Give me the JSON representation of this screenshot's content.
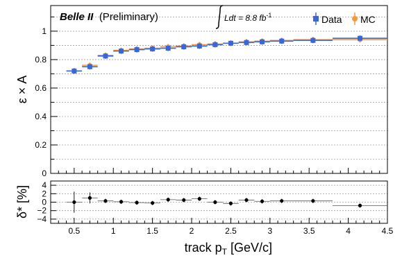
{
  "header": {
    "experiment": "Belle II",
    "status": "(Preliminary)",
    "lumi_symbol": "Ldt = 8.8 fb",
    "lumi_sup": "-1"
  },
  "legend": {
    "data_label": "Data",
    "mc_label": "MC"
  },
  "colors": {
    "data": "#3a67d8",
    "mc": "#f39a3c",
    "ratio": "#000000"
  },
  "chart_data": [
    {
      "type": "scatter",
      "panel": "top",
      "ylabel": "ε × A",
      "xlim": [
        0.2,
        4.5
      ],
      "ylim": [
        0,
        1.18
      ],
      "yticks": [
        0,
        0.2,
        0.4,
        0.6,
        0.8,
        1
      ],
      "ytick_labels": [
        "0",
        "0.2",
        "0.4",
        "0.6",
        "0.8",
        "1"
      ],
      "grid": "horizontal dotted",
      "legend_placement": "top-right",
      "bins": [
        [
          0.4,
          0.6
        ],
        [
          0.6,
          0.8
        ],
        [
          0.8,
          1.0
        ],
        [
          1.0,
          1.2
        ],
        [
          1.2,
          1.4
        ],
        [
          1.4,
          1.6
        ],
        [
          1.6,
          1.8
        ],
        [
          1.8,
          2.0
        ],
        [
          2.0,
          2.2
        ],
        [
          2.2,
          2.4
        ],
        [
          2.4,
          2.6
        ],
        [
          2.6,
          2.8
        ],
        [
          2.8,
          3.0
        ],
        [
          3.0,
          3.3
        ],
        [
          3.3,
          3.8
        ],
        [
          3.8,
          4.5
        ]
      ],
      "series": [
        {
          "name": "Data",
          "x": [
            0.5,
            0.7,
            0.9,
            1.1,
            1.3,
            1.5,
            1.7,
            1.9,
            2.1,
            2.3,
            2.5,
            2.7,
            2.9,
            3.15,
            3.55,
            4.15
          ],
          "y": [
            0.72,
            0.75,
            0.825,
            0.86,
            0.87,
            0.875,
            0.88,
            0.89,
            0.895,
            0.905,
            0.915,
            0.92,
            0.925,
            0.93,
            0.935,
            0.95
          ]
        },
        {
          "name": "MC",
          "x": [
            0.5,
            0.7,
            0.9,
            1.1,
            1.3,
            1.5,
            1.7,
            1.9,
            2.1,
            2.3,
            2.5,
            2.7,
            2.9,
            3.15,
            3.55,
            4.15
          ],
          "y": [
            0.72,
            0.76,
            0.83,
            0.865,
            0.875,
            0.88,
            0.89,
            0.895,
            0.905,
            0.91,
            0.915,
            0.925,
            0.93,
            0.935,
            0.94,
            0.94
          ]
        }
      ]
    },
    {
      "type": "scatter",
      "panel": "bottom",
      "ylabel": "δ* [%]",
      "xlabel": "track p",
      "xlabel_sub": "T",
      "xlabel_unit": " [GeV/c]",
      "xlim": [
        0.2,
        4.5
      ],
      "ylim": [
        -5,
        5
      ],
      "yticks": [
        -4,
        -2,
        0,
        2,
        4
      ],
      "ytick_labels": [
        "−4",
        "−2",
        "0",
        "2",
        "4"
      ],
      "xticks": [
        0.5,
        1,
        1.5,
        2,
        2.5,
        3,
        3.5,
        4,
        4.5
      ],
      "xtick_labels": [
        "0.5",
        "1",
        "1.5",
        "2",
        "2.5",
        "3",
        "3.5",
        "4",
        "4.5"
      ],
      "grid": "horizontal dotted",
      "series": [
        {
          "x": [
            0.5,
            0.7,
            0.9,
            1.1,
            1.3,
            1.5,
            1.7,
            1.9,
            2.1,
            2.3,
            2.5,
            2.7,
            2.9,
            3.15,
            3.55,
            4.15
          ],
          "y": [
            0.0,
            1.0,
            0.3,
            0.1,
            -0.1,
            -0.2,
            0.6,
            0.5,
            0.8,
            0.0,
            -0.3,
            0.5,
            0.2,
            0.3,
            0.3,
            -0.8
          ],
          "yerr": [
            2.5,
            1.3,
            0.5,
            0.5,
            0.5,
            0.5,
            0.5,
            0.5,
            0.5,
            0.5,
            0.5,
            0.5,
            0.5,
            0.5,
            0.5,
            0.5
          ]
        }
      ]
    }
  ]
}
